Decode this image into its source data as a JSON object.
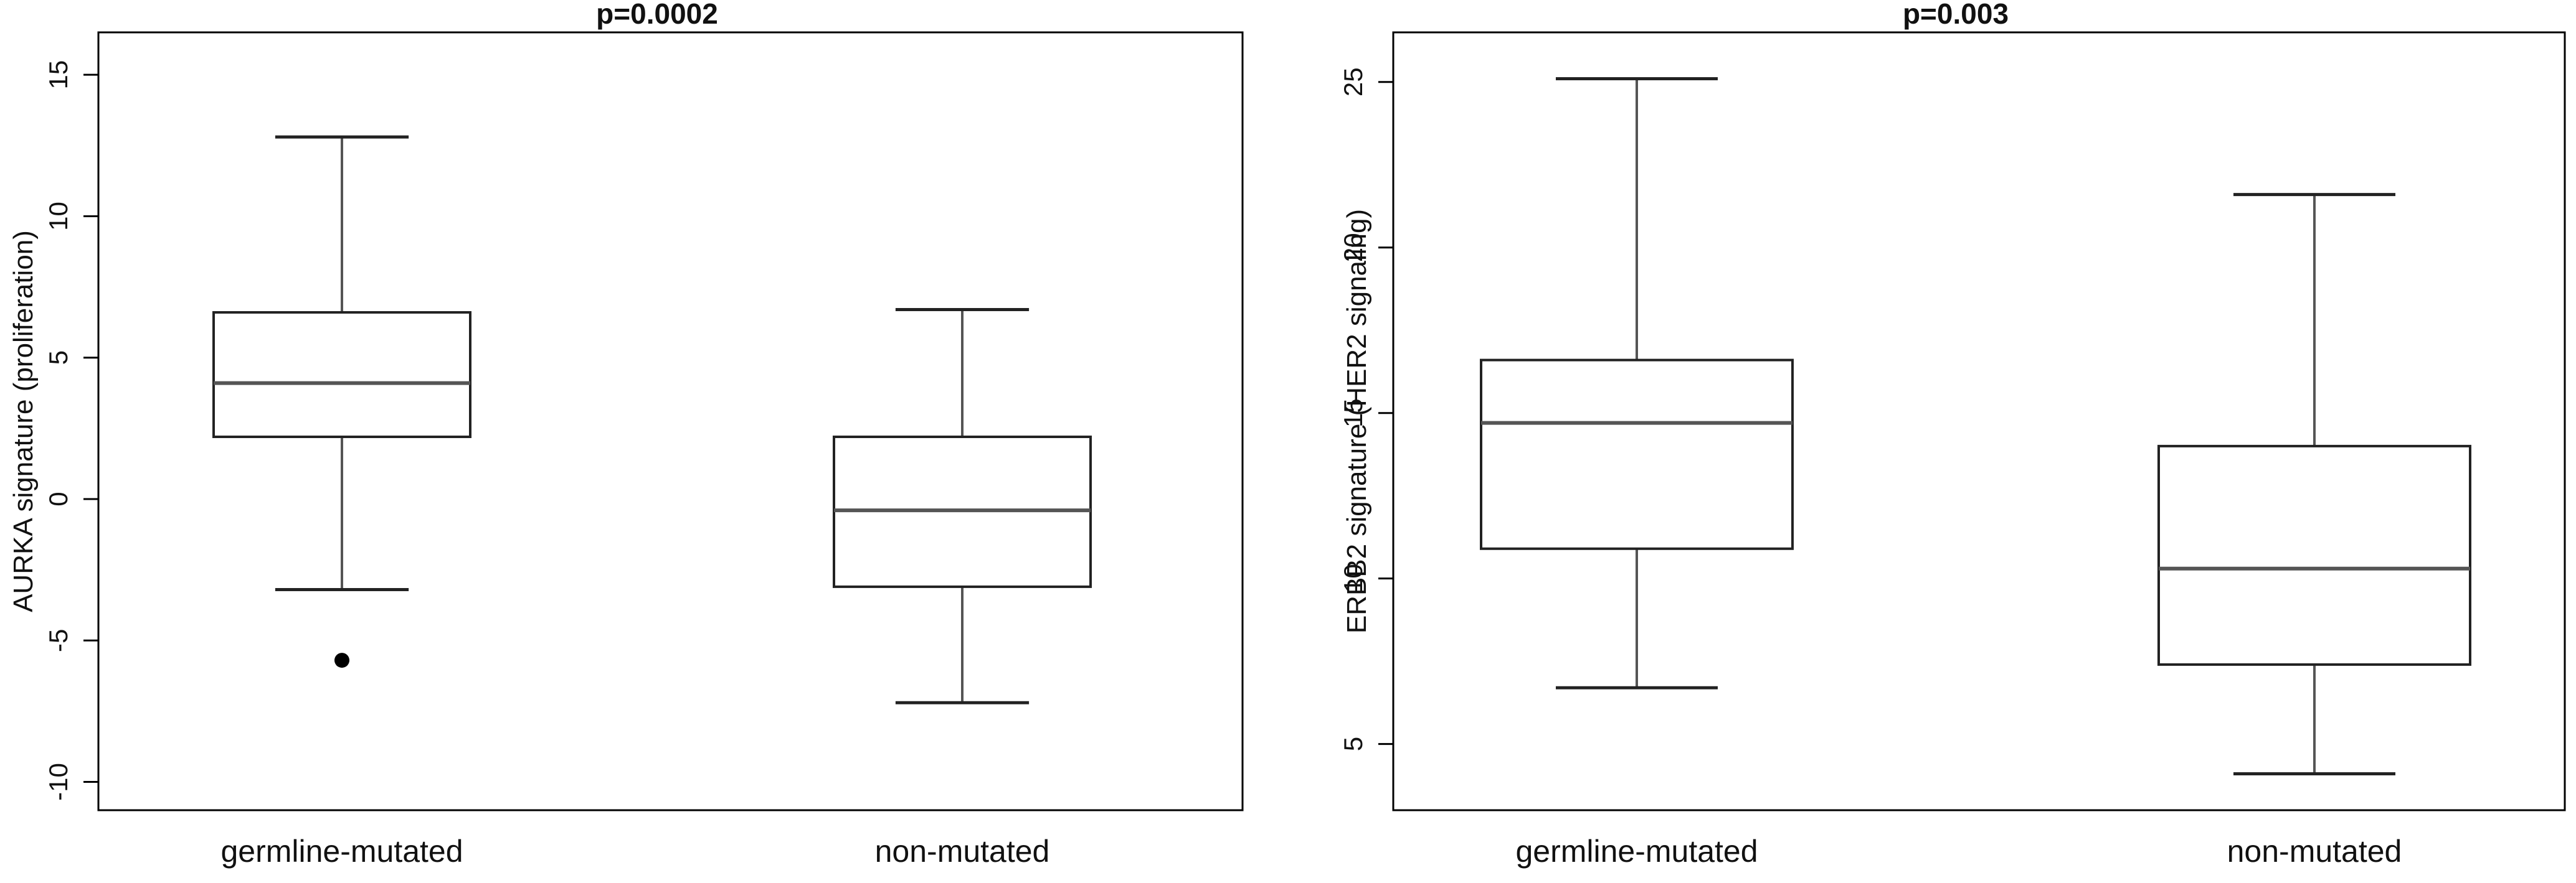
{
  "chart_data": [
    {
      "type": "box",
      "title": "p=0.0002",
      "xlabel": "",
      "ylabel": "AURKA signature (proliferation)",
      "ylim": [
        -11,
        16.5
      ],
      "yticks": [
        -10,
        -5,
        0,
        5,
        10,
        15
      ],
      "ytick_labels": [
        "-10",
        "-5",
        "0",
        "5",
        "10",
        "15"
      ],
      "grid": false,
      "categories": [
        "germline-mutated",
        "non-mutated"
      ],
      "boxes": [
        {
          "category": "germline-mutated",
          "whisker_low": -3.2,
          "q1": 2.2,
          "median": 4.1,
          "q3": 6.6,
          "whisker_high": 12.8,
          "outliers": [
            -5.7
          ]
        },
        {
          "category": "non-mutated",
          "whisker_low": -7.2,
          "q1": -3.1,
          "median": -0.4,
          "q3": 2.2,
          "whisker_high": 6.7,
          "outliers": []
        }
      ]
    },
    {
      "type": "box",
      "title": "p=0.003",
      "xlabel": "",
      "ylabel": "ERBB2 signature (HER2 signaling)",
      "ylim": [
        3.0,
        26.5
      ],
      "yticks": [
        5,
        10,
        15,
        20,
        25
      ],
      "ytick_labels": [
        "5",
        "10",
        "15",
        "20",
        "25"
      ],
      "grid": false,
      "categories": [
        "germline-mutated",
        "non-mutated"
      ],
      "boxes": [
        {
          "category": "germline-mutated",
          "whisker_low": 6.7,
          "q1": 10.9,
          "median": 14.7,
          "q3": 16.6,
          "whisker_high": 25.1,
          "outliers": []
        },
        {
          "category": "non-mutated",
          "whisker_low": 4.1,
          "q1": 7.4,
          "median": 10.3,
          "q3": 14.0,
          "whisker_high": 21.6,
          "outliers": []
        }
      ]
    }
  ]
}
